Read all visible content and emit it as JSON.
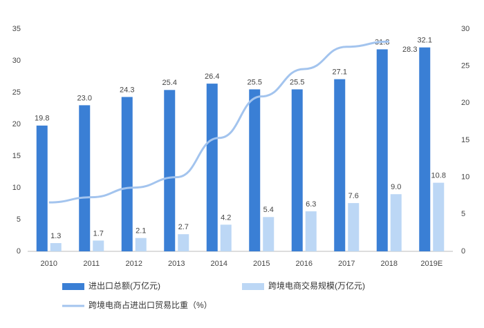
{
  "chart_data": {
    "type": "bar-line",
    "categories": [
      "2010",
      "2011",
      "2012",
      "2013",
      "2014",
      "2015",
      "2016",
      "2017",
      "2018",
      "2019E"
    ],
    "series": [
      {
        "name": "进出口总额(万亿元)",
        "color": "#3a7fd5",
        "values": [
          19.8,
          23.0,
          24.3,
          25.4,
          26.4,
          25.5,
          25.5,
          27.1,
          31.8,
          32.1
        ],
        "value_labels": [
          "19.8",
          "23.0",
          "24.3",
          "25.4",
          "26.4",
          "25.5",
          "25.5",
          "27.1",
          "31.8",
          "32.1"
        ]
      },
      {
        "name": "跨境电商交易规模(万亿元)",
        "color": "#bcd7f5",
        "values": [
          1.3,
          1.7,
          2.1,
          2.7,
          4.2,
          5.4,
          6.3,
          7.6,
          9.0,
          10.8
        ],
        "value_labels": [
          "1.3",
          "1.7",
          "2.1",
          "2.7",
          "4.2",
          "5.4",
          "6.3",
          "7.6",
          "9.0",
          "10.8"
        ]
      },
      {
        "name": "跨境电商占进出口贸易比重（%）",
        "color": "#a3c4ee",
        "axis": "y2",
        "line": true,
        "values": [
          6.6,
          7.3,
          8.6,
          10.0,
          15.3,
          20.9,
          24.6,
          27.6,
          28.3,
          null
        ],
        "value_labels": [
          null,
          null,
          null,
          null,
          null,
          null,
          null,
          null,
          "28.3",
          null
        ]
      }
    ],
    "ylim": [
      0,
      35
    ],
    "yticks": [
      0,
      5,
      10,
      15,
      20,
      25,
      30,
      35
    ],
    "y2lim": [
      0,
      30
    ],
    "y2ticks": [
      0,
      5,
      10,
      15,
      20,
      25,
      30
    ]
  }
}
